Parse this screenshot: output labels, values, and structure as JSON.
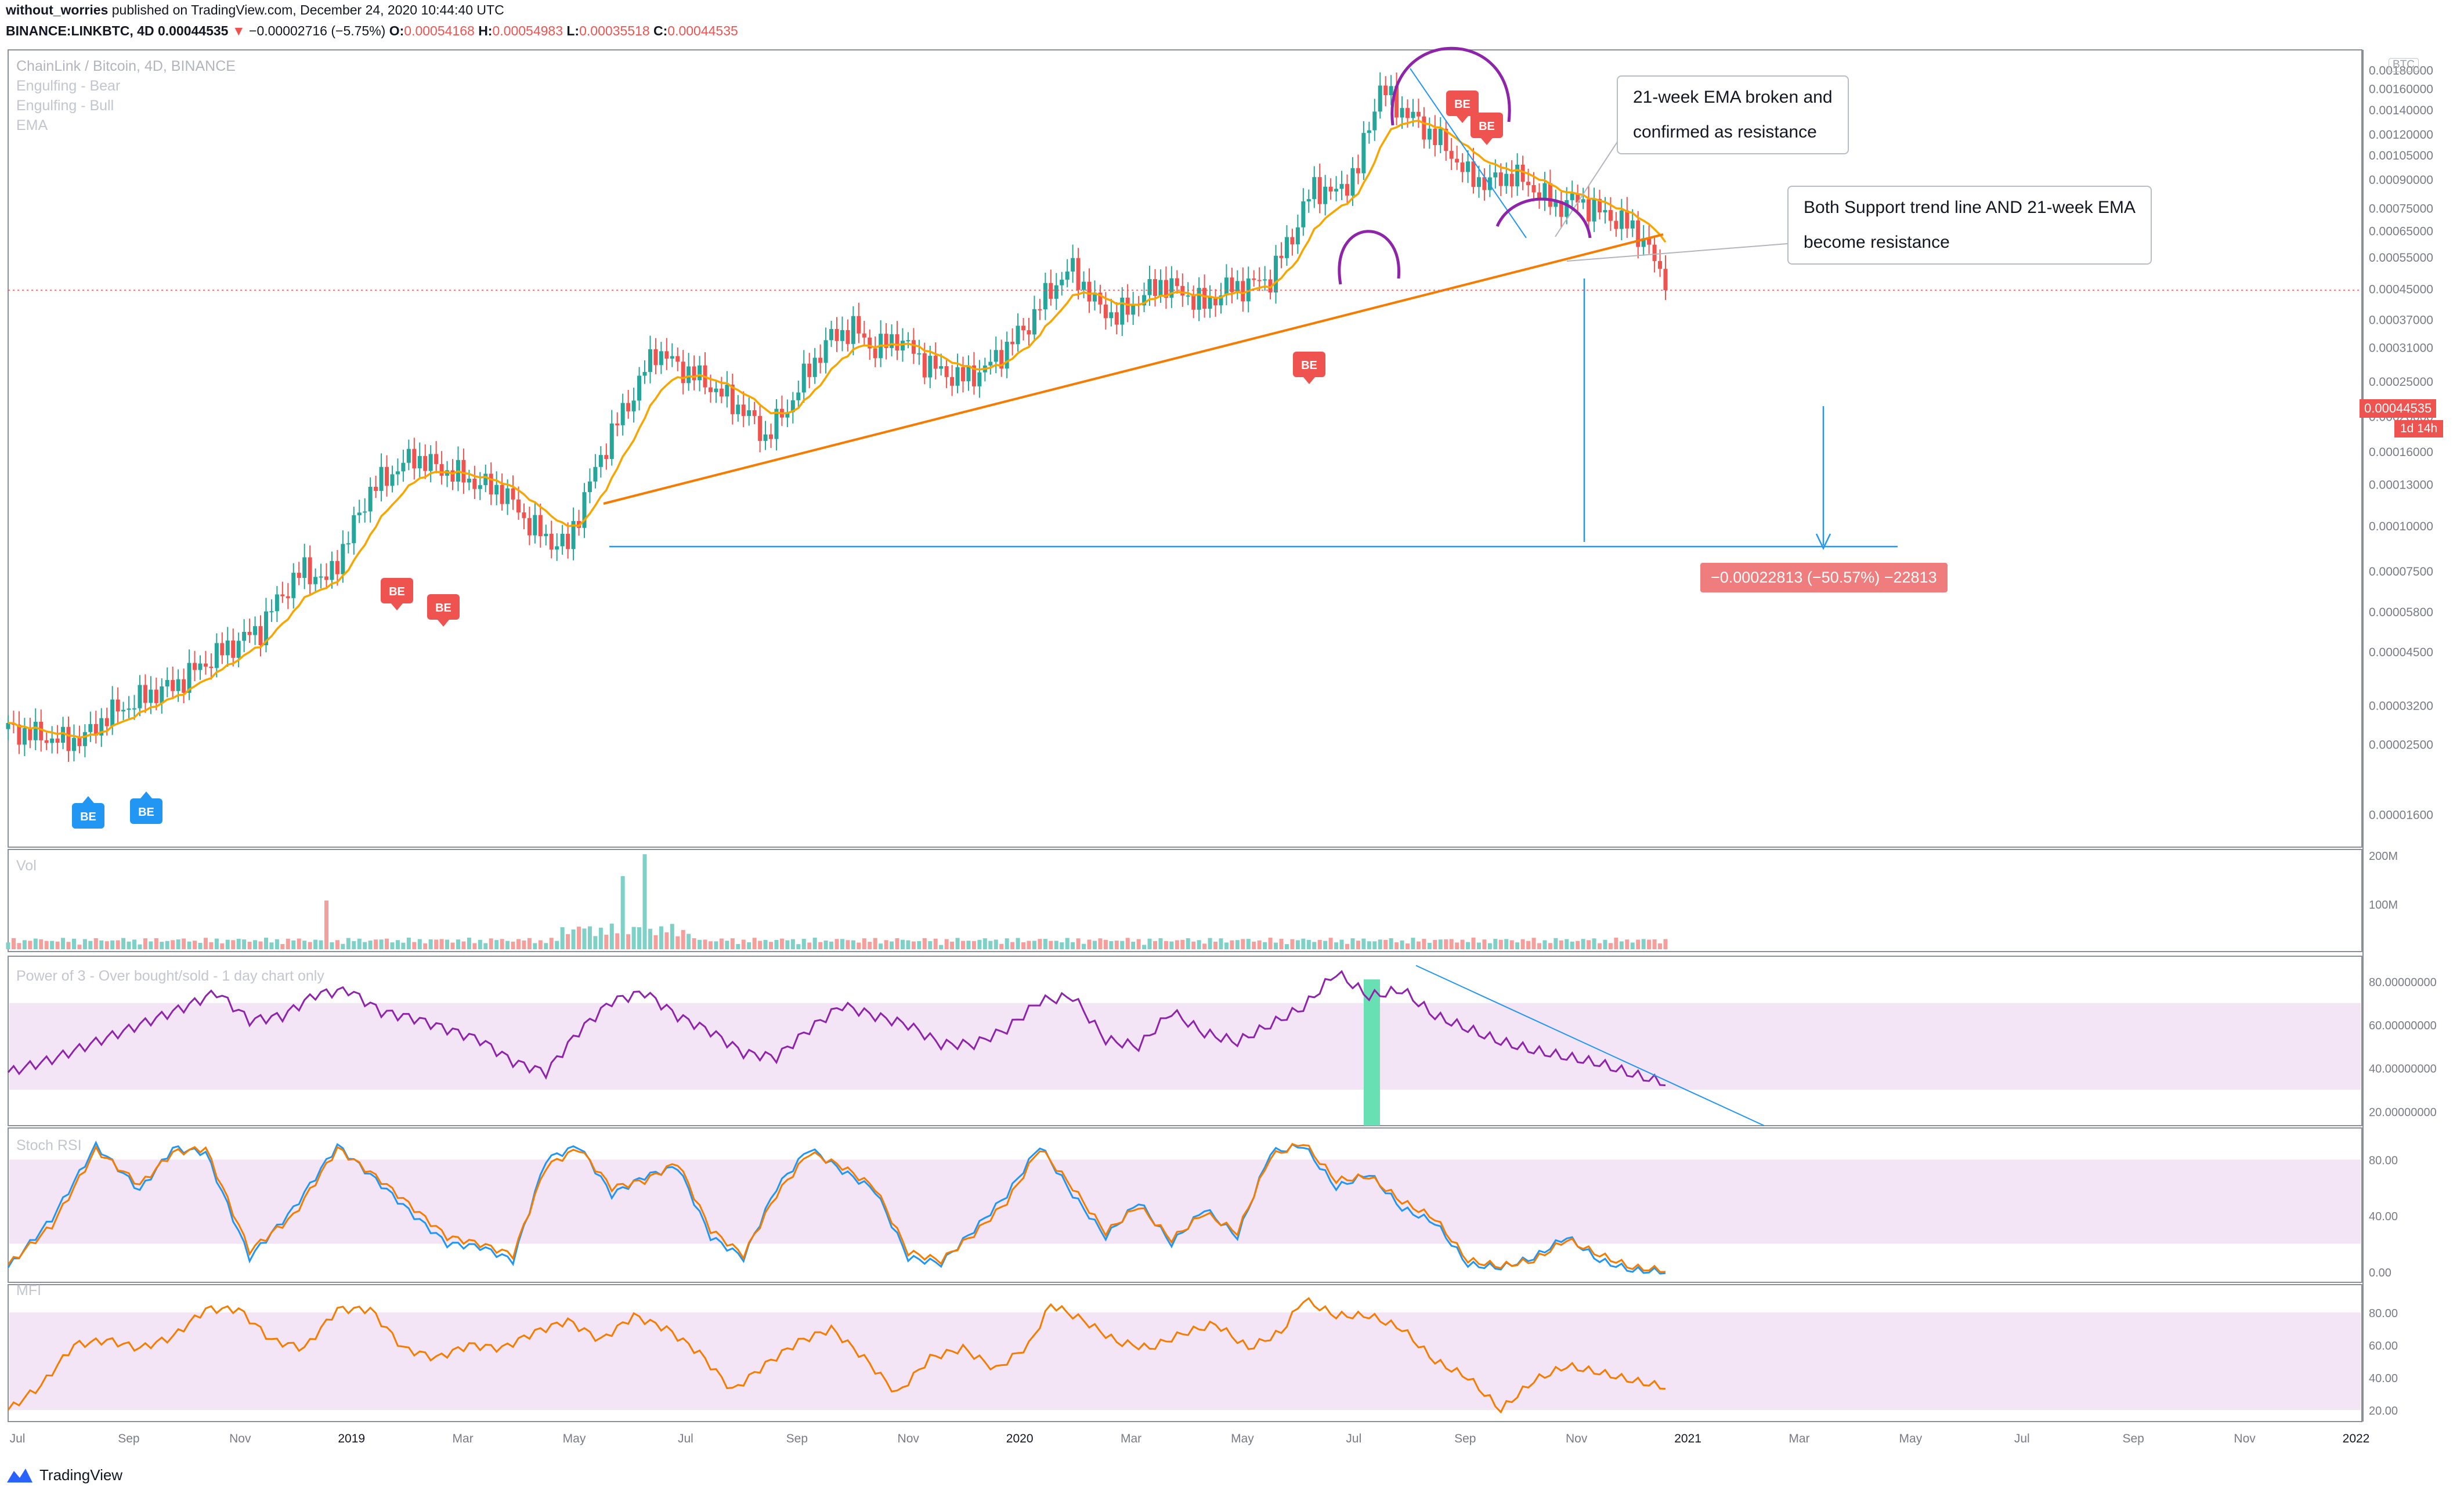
{
  "header": {
    "author": "without_worries",
    "published_text": "published on TradingView.com, December 24, 2020 10:44:40 UTC",
    "symbol": "BINANCE:LINKBTC, 4D",
    "last": "0.00044535",
    "change_arrow": "▼",
    "change": "−0.00002716 (−5.75%)",
    "o_label": "O:",
    "o": "0.00054168",
    "h_label": "H:",
    "h": "0.00054983",
    "l_label": "L:",
    "l": "0.00035518",
    "c_label": "C:",
    "c": "0.00044535"
  },
  "legend": {
    "title": "ChainLink / Bitcoin, 4D, BINANCE",
    "line1": "Engulfing - Bear",
    "line2": "Engulfing - Bull",
    "line3": "EMA"
  },
  "panels": {
    "vol": "Vol",
    "power3": "Power of 3 - Over bought/sold - 1 day chart only",
    "stoch": "Stoch RSI",
    "mfi": "MFI"
  },
  "annotations": {
    "note1_line1": "21-week EMA broken and",
    "note1_line2": "confirmed as resistance",
    "note2_line1": "Both Support trend line AND 21-week EMA",
    "note2_line2": "become resistance",
    "measure": "−0.00022813 (−50.57%) −22813",
    "price_tag": "0.00044535",
    "countdown": "1d 14h",
    "btc_tag": "BTC"
  },
  "brand": {
    "name": "TradingView"
  },
  "colors": {
    "up": "#26a69a",
    "down": "#ef5350",
    "ema": "#f7a600",
    "trend": "#f57c00",
    "line_blue": "#2196f3",
    "purple": "#8e24aa",
    "stoch_k": "#2196f3",
    "stoch_d": "#f57c00",
    "mfi": "#f57c00",
    "band": "#f3e5f5",
    "green_hl": "#69e0b4"
  },
  "chart_data": [
    {
      "type": "candlestick",
      "title": "ChainLink / Bitcoin, 4D, BINANCE",
      "y_scale": "log",
      "x_ticks": [
        "Jul",
        "Sep",
        "Nov",
        "2019",
        "Mar",
        "May",
        "Jul",
        "Sep",
        "Nov",
        "2020",
        "Mar",
        "May",
        "Jul",
        "Sep",
        "Nov",
        "2021",
        "Mar",
        "May",
        "Jul",
        "Sep",
        "Nov",
        "2022"
      ],
      "y_ticks": [
        "0.00180000",
        "0.00160000",
        "0.00140000",
        "0.00120000",
        "0.00105000",
        "0.00090000",
        "0.00075000",
        "0.00065000",
        "0.00055000",
        "0.00045000",
        "0.00037000",
        "0.00031000",
        "0.00025000",
        "0.00020000",
        "0.00016000",
        "0.00013000",
        "0.00010000",
        "0.00007500",
        "0.00005800",
        "0.00004500",
        "0.00003200",
        "0.00002500",
        "0.00001600"
      ],
      "ylim": [
        1.4e-05,
        0.0019
      ],
      "close_path": [
        [
          0,
          2.75e-05
        ],
        [
          5,
          2.65e-05
        ],
        [
          10,
          2.55e-05
        ],
        [
          14,
          2.6e-05
        ],
        [
          18,
          3e-05
        ],
        [
          22,
          3.2e-05
        ],
        [
          26,
          3.45e-05
        ],
        [
          30,
          3.6e-05
        ],
        [
          34,
          4e-05
        ],
        [
          38,
          4.4e-05
        ],
        [
          42,
          4.8e-05
        ],
        [
          46,
          5.2e-05
        ],
        [
          50,
          6.5e-05
        ],
        [
          54,
          7.6e-05
        ],
        [
          58,
          7e-05
        ],
        [
          62,
          9.2e-05
        ],
        [
          66,
          0.000125
        ],
        [
          70,
          0.00014
        ],
        [
          74,
          0.000155
        ],
        [
          78,
          0.000145
        ],
        [
          82,
          0.000138
        ],
        [
          86,
          0.00013
        ],
        [
          90,
          0.000125
        ],
        [
          94,
          0.000105
        ],
        [
          98,
          9.2e-05
        ],
        [
          102,
          8.8e-05
        ],
        [
          106,
          0.00013
        ],
        [
          110,
          0.00018
        ],
        [
          114,
          0.00023
        ],
        [
          118,
          0.000305
        ],
        [
          122,
          0.000275
        ],
        [
          126,
          0.000255
        ],
        [
          130,
          0.00023
        ],
        [
          134,
          0.000208
        ],
        [
          138,
          0.000175
        ],
        [
          142,
          0.00021
        ],
        [
          146,
          0.00027
        ],
        [
          150,
          0.00033
        ],
        [
          154,
          0.00035
        ],
        [
          158,
          0.000305
        ],
        [
          162,
          0.00033
        ],
        [
          166,
          0.00029
        ],
        [
          170,
          0.000265
        ],
        [
          174,
          0.000255
        ],
        [
          178,
          0.00027
        ],
        [
          182,
          0.00031
        ],
        [
          186,
          0.00036
        ],
        [
          190,
          0.00045
        ],
        [
          194,
          0.00051
        ],
        [
          198,
          0.00041
        ],
        [
          202,
          0.000375
        ],
        [
          206,
          0.00042
        ],
        [
          210,
          0.000465
        ],
        [
          214,
          0.00044
        ],
        [
          218,
          0.000405
        ],
        [
          222,
          0.00045
        ],
        [
          226,
          0.00046
        ],
        [
          230,
          0.00048
        ],
        [
          234,
          0.00063
        ],
        [
          238,
          0.00086
        ],
        [
          242,
          0.00082
        ],
        [
          246,
          0.00096
        ],
        [
          250,
          0.0016
        ],
        [
          254,
          0.0014
        ],
        [
          258,
          0.00125
        ],
        [
          262,
          0.0011
        ],
        [
          266,
          0.00092
        ],
        [
          270,
          0.00088
        ],
        [
          274,
          0.00093
        ],
        [
          278,
          0.00085
        ],
        [
          282,
          0.00076
        ],
        [
          286,
          0.00079
        ],
        [
          290,
          0.00073
        ],
        [
          294,
          0.00069
        ],
        [
          298,
          0.00062
        ],
        [
          302,
          0.00044535
        ]
      ],
      "ema_label": "EMA",
      "engulfing_bear_count": 5,
      "engulfing_bull_count": 2
    },
    {
      "type": "bar",
      "title": "Vol",
      "y_ticks": [
        "200M",
        "100M"
      ],
      "ylim": [
        0,
        200
      ]
    },
    {
      "type": "line",
      "title": "Power of 3 - Over bought/sold - 1 day chart only",
      "y_ticks": [
        "80.00000000",
        "60.00000000",
        "40.00000000",
        "20.00000000"
      ],
      "ylim": [
        15,
        90
      ],
      "band": [
        30,
        70
      ],
      "path": [
        [
          0,
          38
        ],
        [
          8,
          44
        ],
        [
          16,
          52
        ],
        [
          24,
          60
        ],
        [
          32,
          68
        ],
        [
          38,
          75
        ],
        [
          44,
          62
        ],
        [
          50,
          64
        ],
        [
          56,
          74
        ],
        [
          62,
          76
        ],
        [
          68,
          66
        ],
        [
          74,
          63
        ],
        [
          80,
          58
        ],
        [
          86,
          53
        ],
        [
          92,
          43
        ],
        [
          98,
          38
        ],
        [
          104,
          57
        ],
        [
          110,
          71
        ],
        [
          116,
          75
        ],
        [
          122,
          64
        ],
        [
          128,
          57
        ],
        [
          134,
          47
        ],
        [
          140,
          45
        ],
        [
          146,
          58
        ],
        [
          152,
          69
        ],
        [
          158,
          64
        ],
        [
          164,
          60
        ],
        [
          170,
          51
        ],
        [
          176,
          51
        ],
        [
          182,
          58
        ],
        [
          188,
          71
        ],
        [
          194,
          73
        ],
        [
          200,
          53
        ],
        [
          206,
          50
        ],
        [
          212,
          66
        ],
        [
          218,
          56
        ],
        [
          224,
          52
        ],
        [
          230,
          60
        ],
        [
          236,
          68
        ],
        [
          242,
          84
        ],
        [
          248,
          73
        ],
        [
          254,
          76
        ],
        [
          260,
          64
        ],
        [
          266,
          58
        ],
        [
          272,
          52
        ],
        [
          278,
          48
        ],
        [
          284,
          45
        ],
        [
          290,
          42
        ],
        [
          296,
          37
        ],
        [
          302,
          33
        ]
      ]
    },
    {
      "type": "line",
      "title": "Stoch RSI",
      "y_ticks": [
        "80.00",
        "40.00",
        "0.00"
      ],
      "ylim": [
        -5,
        100
      ],
      "band": [
        20,
        80
      ],
      "series": [
        {
          "name": "K",
          "path": [
            [
              0,
              3
            ],
            [
              8,
              38
            ],
            [
              16,
              90
            ],
            [
              24,
              58
            ],
            [
              30,
              88
            ],
            [
              36,
              85
            ],
            [
              44,
              10
            ],
            [
              52,
              45
            ],
            [
              60,
              90
            ],
            [
              68,
              62
            ],
            [
              74,
              40
            ],
            [
              80,
              20
            ],
            [
              86,
              18
            ],
            [
              92,
              8
            ],
            [
              98,
              80
            ],
            [
              104,
              90
            ],
            [
              110,
              55
            ],
            [
              116,
              68
            ],
            [
              122,
              75
            ],
            [
              128,
              25
            ],
            [
              134,
              10
            ],
            [
              140,
              60
            ],
            [
              146,
              88
            ],
            [
              152,
              72
            ],
            [
              158,
              58
            ],
            [
              164,
              10
            ],
            [
              170,
              6
            ],
            [
              176,
              30
            ],
            [
              182,
              55
            ],
            [
              188,
              90
            ],
            [
              194,
              55
            ],
            [
              200,
              25
            ],
            [
              206,
              50
            ],
            [
              212,
              20
            ],
            [
              218,
              45
            ],
            [
              224,
              25
            ],
            [
              230,
              85
            ],
            [
              236,
              90
            ],
            [
              242,
              60
            ],
            [
              248,
              70
            ],
            [
              254,
              45
            ],
            [
              260,
              35
            ],
            [
              266,
              5
            ],
            [
              272,
              3
            ],
            [
              278,
              10
            ],
            [
              284,
              25
            ],
            [
              290,
              8
            ],
            [
              296,
              1
            ],
            [
              302,
              0
            ]
          ]
        },
        {
          "name": "D",
          "path": [
            [
              0,
              5
            ],
            [
              8,
              33
            ],
            [
              16,
              87
            ],
            [
              24,
              62
            ],
            [
              30,
              85
            ],
            [
              36,
              88
            ],
            [
              44,
              15
            ],
            [
              52,
              40
            ],
            [
              60,
              88
            ],
            [
              68,
              65
            ],
            [
              74,
              45
            ],
            [
              80,
              25
            ],
            [
              86,
              20
            ],
            [
              92,
              12
            ],
            [
              98,
              75
            ],
            [
              104,
              88
            ],
            [
              110,
              60
            ],
            [
              116,
              65
            ],
            [
              122,
              78
            ],
            [
              128,
              30
            ],
            [
              134,
              12
            ],
            [
              140,
              55
            ],
            [
              146,
              85
            ],
            [
              152,
              75
            ],
            [
              158,
              60
            ],
            [
              164,
              14
            ],
            [
              170,
              8
            ],
            [
              176,
              27
            ],
            [
              182,
              50
            ],
            [
              188,
              88
            ],
            [
              194,
              60
            ],
            [
              200,
              28
            ],
            [
              206,
              47
            ],
            [
              212,
              23
            ],
            [
              218,
              42
            ],
            [
              224,
              28
            ],
            [
              230,
              82
            ],
            [
              236,
              92
            ],
            [
              242,
              65
            ],
            [
              248,
              68
            ],
            [
              254,
              50
            ],
            [
              260,
              38
            ],
            [
              266,
              8
            ],
            [
              272,
              4
            ],
            [
              278,
              8
            ],
            [
              284,
              23
            ],
            [
              290,
              12
            ],
            [
              296,
              3
            ],
            [
              302,
              1
            ]
          ]
        }
      ]
    },
    {
      "type": "line",
      "title": "MFI",
      "y_ticks": [
        "80.00",
        "60.00",
        "40.00",
        "20.00"
      ],
      "ylim": [
        15,
        95
      ],
      "band": [
        20,
        80
      ],
      "path": [
        [
          0,
          20
        ],
        [
          6,
          35
        ],
        [
          12,
          60
        ],
        [
          18,
          63
        ],
        [
          24,
          58
        ],
        [
          30,
          65
        ],
        [
          36,
          82
        ],
        [
          42,
          82
        ],
        [
          48,
          63
        ],
        [
          54,
          58
        ],
        [
          60,
          82
        ],
        [
          66,
          82
        ],
        [
          72,
          58
        ],
        [
          78,
          52
        ],
        [
          84,
          60
        ],
        [
          90,
          58
        ],
        [
          96,
          68
        ],
        [
          102,
          75
        ],
        [
          108,
          63
        ],
        [
          114,
          78
        ],
        [
          120,
          70
        ],
        [
          126,
          55
        ],
        [
          132,
          32
        ],
        [
          138,
          48
        ],
        [
          144,
          62
        ],
        [
          150,
          70
        ],
        [
          156,
          52
        ],
        [
          162,
          30
        ],
        [
          168,
          52
        ],
        [
          174,
          58
        ],
        [
          180,
          45
        ],
        [
          186,
          60
        ],
        [
          190,
          85
        ],
        [
          196,
          75
        ],
        [
          202,
          62
        ],
        [
          208,
          58
        ],
        [
          214,
          67
        ],
        [
          220,
          73
        ],
        [
          226,
          58
        ],
        [
          232,
          68
        ],
        [
          236,
          88
        ],
        [
          242,
          78
        ],
        [
          248,
          78
        ],
        [
          254,
          70
        ],
        [
          260,
          50
        ],
        [
          266,
          40
        ],
        [
          272,
          20
        ],
        [
          278,
          38
        ],
        [
          284,
          47
        ],
        [
          290,
          43
        ],
        [
          296,
          38
        ],
        [
          302,
          34
        ]
      ]
    }
  ]
}
